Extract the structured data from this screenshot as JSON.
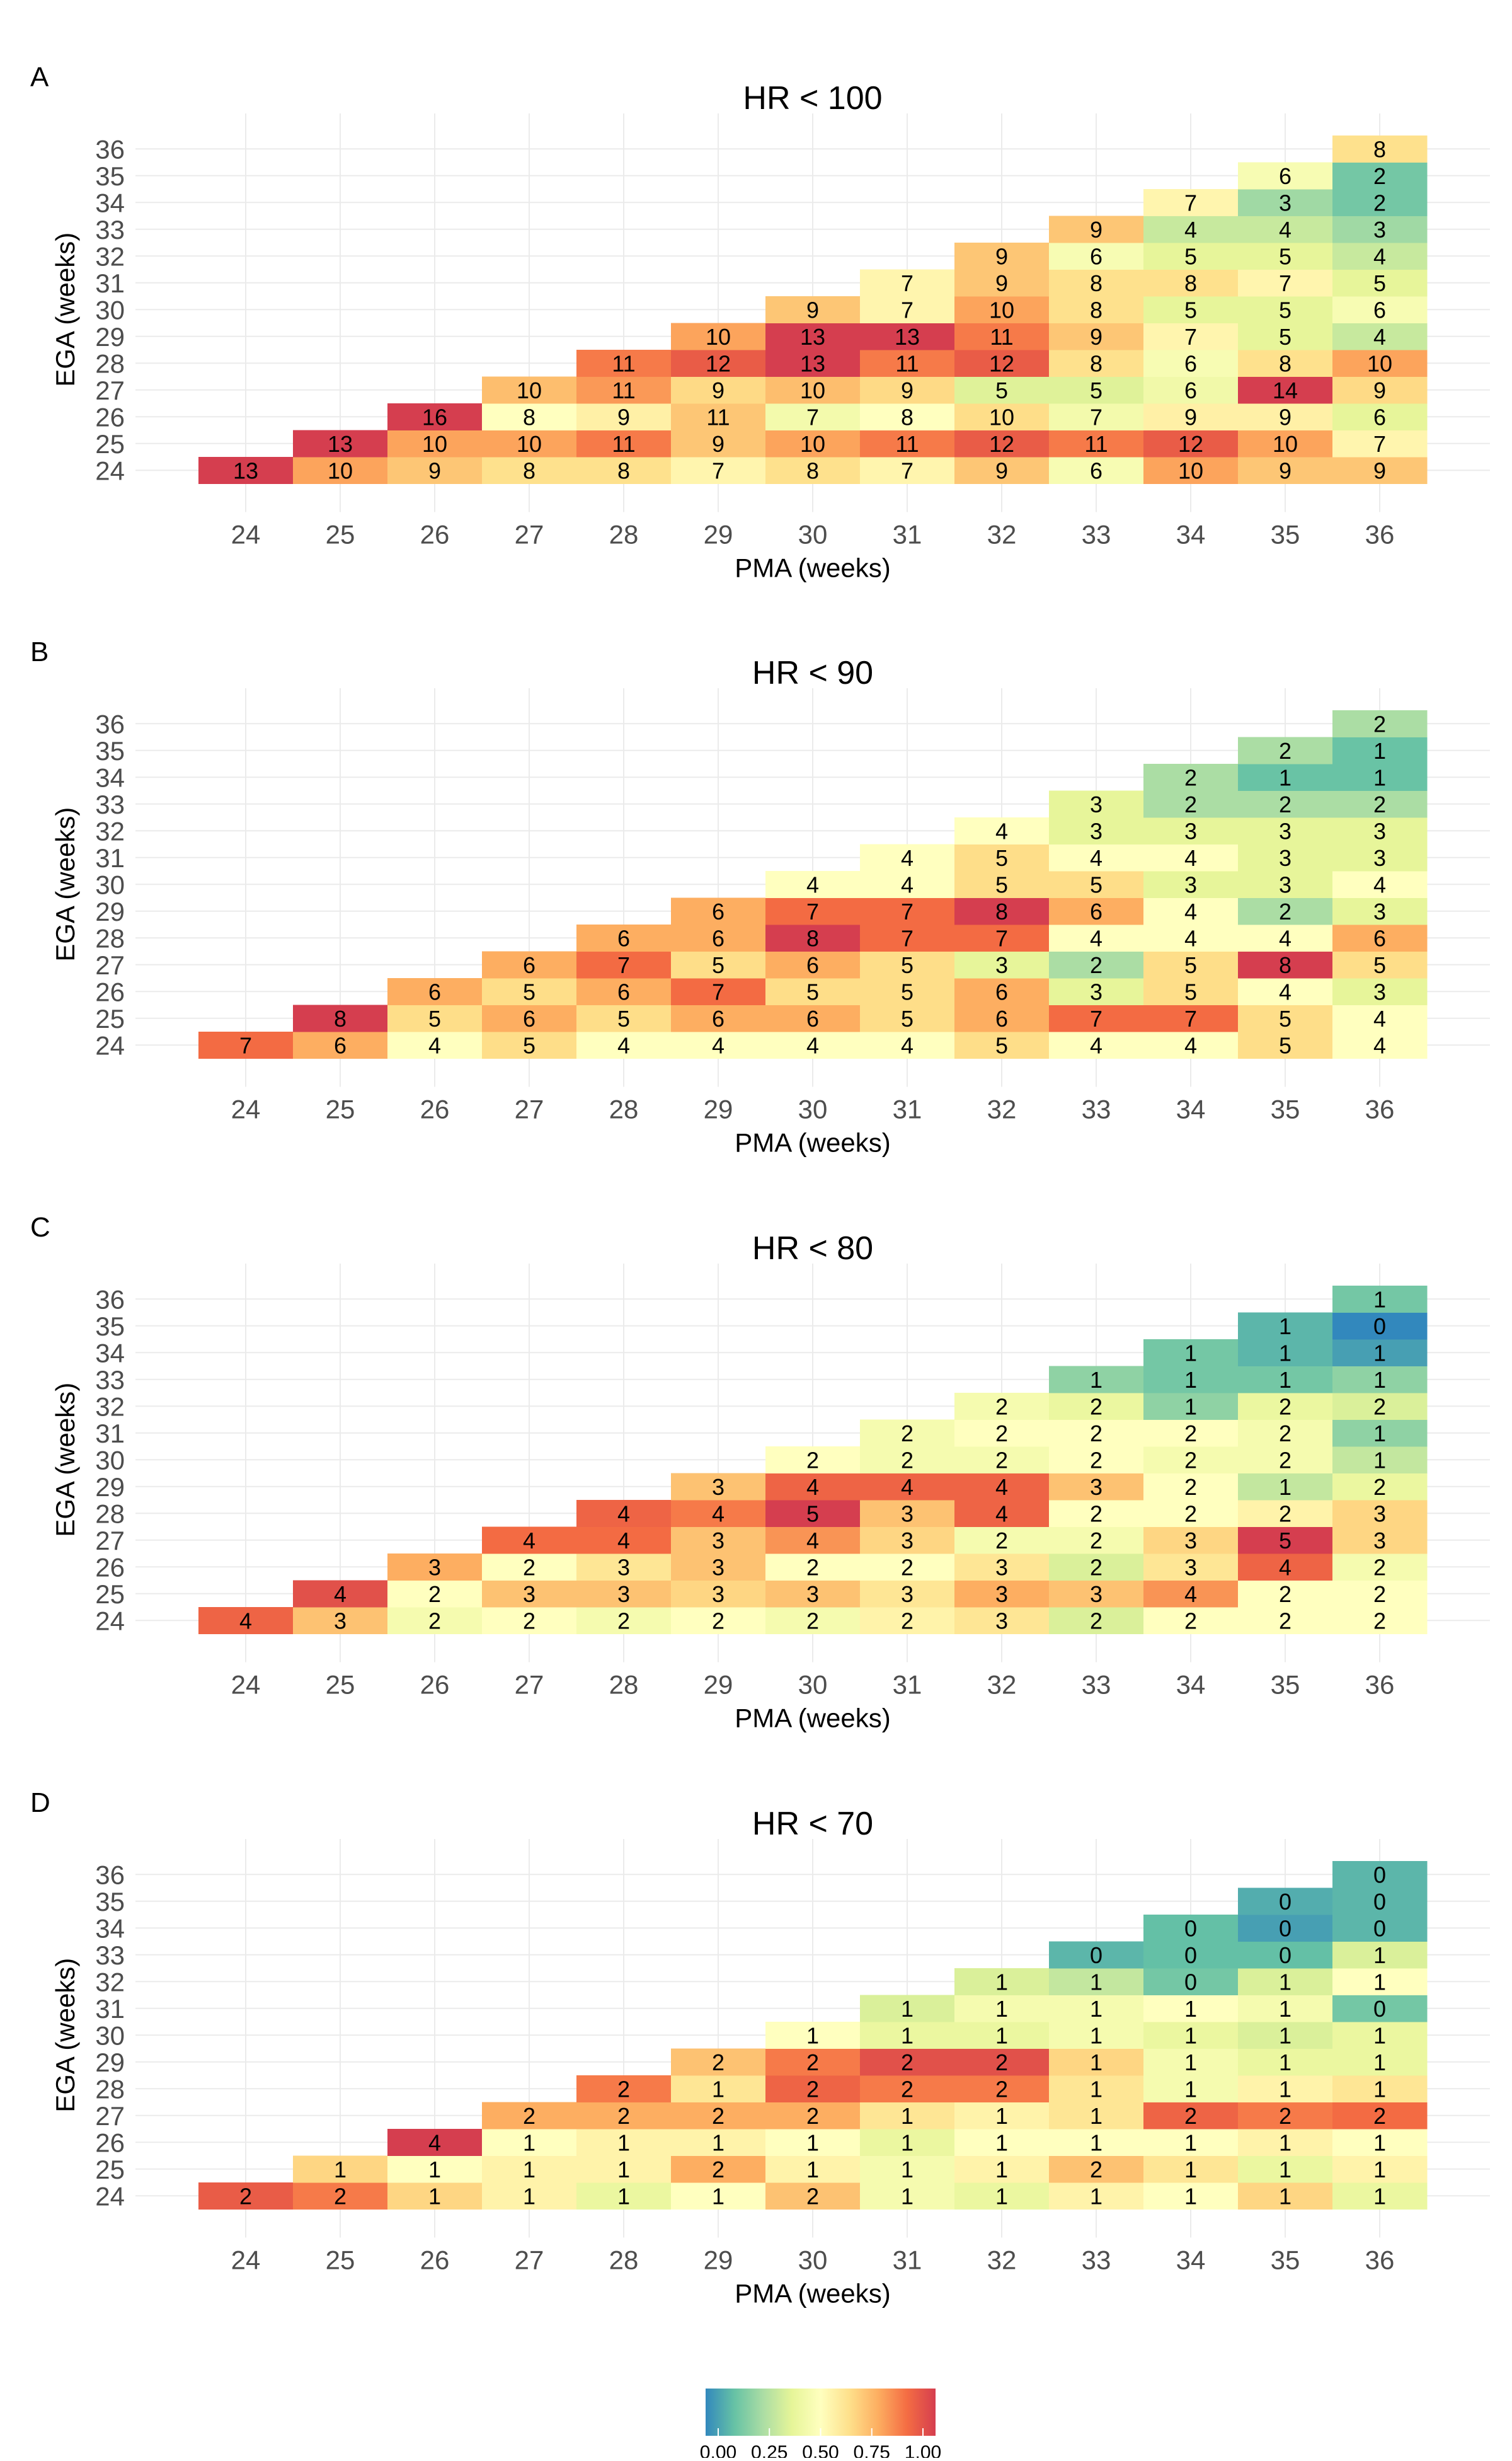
{
  "chart_data": {
    "type": "heatmap",
    "x_axis_label": "PMA (weeks)",
    "y_axis_label": "EGA (weeks)",
    "x_ticks": [
      "24",
      "25",
      "26",
      "27",
      "28",
      "29",
      "30",
      "31",
      "32",
      "33",
      "34",
      "35",
      "36"
    ],
    "y_ticks": [
      "24",
      "25",
      "26",
      "27",
      "28",
      "29",
      "30",
      "31",
      "32",
      "33",
      "34",
      "35",
      "36"
    ],
    "color_scale": {
      "name": "Spectral (reversed)",
      "min": 0,
      "max": 1,
      "stops": [
        "#3288bd",
        "#66c2a5",
        "#abdda4",
        "#e6f598",
        "#ffffbf",
        "#fee08b",
        "#fdae61",
        "#f46d43",
        "#d53e4f"
      ],
      "tick_labels": [
        "0.00",
        "0.25",
        "0.50",
        "0.75",
        "1.00"
      ]
    },
    "panels": [
      {
        "letter": "A",
        "title": "HR < 100",
        "rows": {
          "24": [
            13,
            10,
            9,
            8,
            8,
            7,
            8,
            7,
            9,
            6,
            10,
            9,
            9
          ],
          "25": [
            13,
            10,
            10,
            11,
            9,
            10,
            11,
            12,
            11,
            12,
            10,
            7
          ],
          "26": [
            16,
            8,
            9,
            11,
            7,
            8,
            10,
            7,
            9,
            9,
            6
          ],
          "27": [
            10,
            11,
            9,
            10,
            9,
            5,
            5,
            6,
            14,
            9
          ],
          "28": [
            11,
            12,
            13,
            11,
            12,
            8,
            6,
            8,
            10
          ],
          "29": [
            10,
            13,
            13,
            11,
            9,
            7,
            5,
            4
          ],
          "30": [
            9,
            7,
            10,
            8,
            5,
            5,
            6
          ],
          "31": [
            7,
            9,
            8,
            8,
            7,
            5
          ],
          "32": [
            9,
            6,
            5,
            5,
            4
          ],
          "33": [
            9,
            4,
            4,
            3
          ],
          "34": [
            7,
            3,
            2
          ],
          "35": [
            6,
            2
          ],
          "36": [
            8
          ]
        },
        "fractions": {
          "24": [
            1.0,
            0.77,
            0.69,
            0.62,
            0.62,
            0.54,
            0.62,
            0.54,
            0.69,
            0.46,
            0.77,
            0.69,
            0.69
          ],
          "25": [
            1.0,
            0.77,
            0.77,
            0.85,
            0.69,
            0.77,
            0.85,
            0.92,
            0.85,
            0.92,
            0.77,
            0.54
          ],
          "26": [
            1.0,
            0.5,
            0.56,
            0.69,
            0.44,
            0.5,
            0.63,
            0.44,
            0.56,
            0.56,
            0.38
          ],
          "27": [
            0.71,
            0.79,
            0.64,
            0.71,
            0.64,
            0.36,
            0.36,
            0.43,
            1.0,
            0.64
          ],
          "28": [
            0.85,
            0.92,
            1.0,
            0.85,
            0.92,
            0.62,
            0.46,
            0.62,
            0.77
          ],
          "29": [
            0.77,
            1.0,
            1.0,
            0.85,
            0.69,
            0.54,
            0.38,
            0.31
          ],
          "30": [
            0.69,
            0.54,
            0.77,
            0.62,
            0.38,
            0.38,
            0.46
          ],
          "31": [
            0.54,
            0.69,
            0.62,
            0.62,
            0.54,
            0.38
          ],
          "32": [
            0.69,
            0.46,
            0.38,
            0.38,
            0.31
          ],
          "33": [
            0.69,
            0.31,
            0.31,
            0.23
          ],
          "34": [
            0.54,
            0.23,
            0.15
          ],
          "35": [
            0.46,
            0.15
          ],
          "36": [
            0.62
          ]
        }
      },
      {
        "letter": "B",
        "title": "HR < 90",
        "rows": {
          "24": [
            7,
            6,
            4,
            5,
            4,
            4,
            4,
            4,
            5,
            4,
            4,
            5,
            4
          ],
          "25": [
            8,
            5,
            6,
            5,
            6,
            6,
            5,
            6,
            7,
            7,
            5,
            4
          ],
          "26": [
            6,
            5,
            6,
            7,
            5,
            5,
            6,
            3,
            5,
            4,
            3
          ],
          "27": [
            6,
            7,
            5,
            6,
            5,
            3,
            2,
            5,
            8,
            5
          ],
          "28": [
            6,
            6,
            8,
            7,
            7,
            4,
            4,
            4,
            6
          ],
          "29": [
            6,
            7,
            7,
            8,
            6,
            4,
            2,
            3
          ],
          "30": [
            4,
            4,
            5,
            5,
            3,
            3,
            4
          ],
          "31": [
            4,
            5,
            4,
            4,
            3,
            3
          ],
          "32": [
            4,
            3,
            3,
            3,
            3
          ],
          "33": [
            3,
            2,
            2,
            2
          ],
          "34": [
            2,
            1,
            1
          ],
          "35": [
            2,
            1
          ],
          "36": [
            2
          ]
        },
        "fractions": {
          "24": [
            0.88,
            0.75,
            0.5,
            0.63,
            0.5,
            0.5,
            0.5,
            0.5,
            0.63,
            0.5,
            0.5,
            0.63,
            0.5
          ],
          "25": [
            1.0,
            0.63,
            0.75,
            0.63,
            0.75,
            0.75,
            0.63,
            0.75,
            0.88,
            0.88,
            0.63,
            0.5
          ],
          "26": [
            0.75,
            0.63,
            0.75,
            0.88,
            0.63,
            0.63,
            0.75,
            0.38,
            0.63,
            0.5,
            0.38
          ],
          "27": [
            0.75,
            0.88,
            0.63,
            0.75,
            0.63,
            0.38,
            0.25,
            0.63,
            1.0,
            0.63
          ],
          "28": [
            0.75,
            0.75,
            1.0,
            0.88,
            0.88,
            0.5,
            0.5,
            0.5,
            0.75
          ],
          "29": [
            0.75,
            0.88,
            0.88,
            1.0,
            0.75,
            0.5,
            0.25,
            0.38
          ],
          "30": [
            0.5,
            0.5,
            0.63,
            0.63,
            0.38,
            0.38,
            0.5
          ],
          "31": [
            0.5,
            0.63,
            0.5,
            0.5,
            0.38,
            0.38
          ],
          "32": [
            0.5,
            0.38,
            0.38,
            0.38,
            0.38
          ],
          "33": [
            0.38,
            0.25,
            0.25,
            0.25
          ],
          "34": [
            0.25,
            0.13,
            0.13
          ],
          "35": [
            0.25,
            0.13
          ],
          "36": [
            0.25
          ]
        }
      },
      {
        "letter": "C",
        "title": "HR < 80",
        "rows": {
          "24": [
            4,
            3,
            2,
            2,
            2,
            2,
            2,
            2,
            3,
            2,
            2,
            2,
            2
          ],
          "25": [
            4,
            2,
            3,
            3,
            3,
            3,
            3,
            3,
            3,
            4,
            2,
            2
          ],
          "26": [
            3,
            2,
            3,
            3,
            2,
            2,
            3,
            2,
            3,
            4,
            2
          ],
          "27": [
            4,
            4,
            3,
            4,
            3,
            2,
            2,
            3,
            5,
            3
          ],
          "28": [
            4,
            4,
            5,
            3,
            4,
            2,
            2,
            2,
            3
          ],
          "29": [
            3,
            4,
            4,
            4,
            3,
            2,
            1,
            2
          ],
          "30": [
            2,
            2,
            2,
            2,
            2,
            2,
            1
          ],
          "31": [
            2,
            2,
            2,
            2,
            2,
            1
          ],
          "32": [
            2,
            2,
            1,
            2,
            2
          ],
          "33": [
            1,
            1,
            1,
            1
          ],
          "34": [
            1,
            1,
            1
          ],
          "35": [
            1,
            0
          ],
          "36": [
            1
          ]
        },
        "fractions": {
          "24": [
            0.9,
            0.7,
            0.45,
            0.5,
            0.45,
            0.5,
            0.45,
            0.55,
            0.6,
            0.35,
            0.5,
            0.5,
            0.5
          ],
          "25": [
            0.95,
            0.5,
            0.7,
            0.7,
            0.65,
            0.7,
            0.6,
            0.75,
            0.7,
            0.8,
            0.5,
            0.5
          ],
          "26": [
            0.75,
            0.5,
            0.6,
            0.7,
            0.5,
            0.5,
            0.6,
            0.35,
            0.6,
            0.9,
            0.45
          ],
          "27": [
            0.88,
            0.88,
            0.7,
            0.8,
            0.65,
            0.45,
            0.45,
            0.65,
            1.0,
            0.65
          ],
          "28": [
            0.9,
            0.85,
            1.0,
            0.7,
            0.9,
            0.5,
            0.5,
            0.55,
            0.65
          ],
          "29": [
            0.7,
            0.9,
            0.9,
            0.9,
            0.7,
            0.5,
            0.3,
            0.4
          ],
          "30": [
            0.5,
            0.45,
            0.45,
            0.5,
            0.45,
            0.45,
            0.3
          ],
          "31": [
            0.45,
            0.5,
            0.5,
            0.5,
            0.45,
            0.2
          ],
          "32": [
            0.45,
            0.4,
            0.2,
            0.4,
            0.35
          ],
          "33": [
            0.2,
            0.15,
            0.15,
            0.2
          ],
          "34": [
            0.15,
            0.1,
            0.05
          ],
          "35": [
            0.1,
            0.0
          ],
          "36": [
            0.15
          ]
        }
      },
      {
        "letter": "D",
        "title": "HR < 70",
        "rows": {
          "24": [
            2,
            2,
            1,
            1,
            1,
            1,
            2,
            1,
            1,
            1,
            1,
            1,
            1
          ],
          "25": [
            1,
            1,
            1,
            1,
            2,
            1,
            1,
            1,
            2,
            1,
            1,
            1
          ],
          "26": [
            4,
            1,
            1,
            1,
            1,
            1,
            1,
            1,
            1,
            1,
            1
          ],
          "27": [
            2,
            2,
            2,
            2,
            1,
            1,
            1,
            2,
            2,
            2
          ],
          "28": [
            2,
            1,
            2,
            2,
            2,
            1,
            1,
            1,
            1
          ],
          "29": [
            2,
            2,
            2,
            2,
            1,
            1,
            1,
            1
          ],
          "30": [
            1,
            1,
            1,
            1,
            1,
            1,
            1
          ],
          "31": [
            1,
            1,
            1,
            1,
            1,
            0
          ],
          "32": [
            1,
            1,
            0,
            1,
            1
          ],
          "33": [
            0,
            0,
            0,
            1
          ],
          "34": [
            0,
            0,
            0
          ],
          "35": [
            0,
            0
          ],
          "36": [
            0
          ]
        },
        "fractions": {
          "24": [
            0.92,
            0.85,
            0.65,
            0.55,
            0.4,
            0.5,
            0.7,
            0.45,
            0.4,
            0.55,
            0.5,
            0.65,
            0.4
          ],
          "25": [
            0.65,
            0.5,
            0.55,
            0.55,
            0.75,
            0.55,
            0.45,
            0.55,
            0.7,
            0.6,
            0.4,
            0.55
          ],
          "26": [
            1.0,
            0.5,
            0.55,
            0.55,
            0.5,
            0.4,
            0.5,
            0.5,
            0.5,
            0.55,
            0.5
          ],
          "27": [
            0.75,
            0.75,
            0.75,
            0.75,
            0.6,
            0.55,
            0.6,
            0.9,
            0.85,
            0.88
          ],
          "28": [
            0.85,
            0.6,
            0.9,
            0.85,
            0.85,
            0.6,
            0.45,
            0.55,
            0.6
          ],
          "29": [
            0.7,
            0.85,
            0.95,
            0.95,
            0.65,
            0.45,
            0.4,
            0.4
          ],
          "30": [
            0.5,
            0.4,
            0.4,
            0.45,
            0.4,
            0.35,
            0.4
          ],
          "31": [
            0.35,
            0.45,
            0.45,
            0.5,
            0.45,
            0.15
          ],
          "32": [
            0.35,
            0.3,
            0.15,
            0.35,
            0.5
          ],
          "33": [
            0.1,
            0.12,
            0.12,
            0.35
          ],
          "34": [
            0.12,
            0.05,
            0.1
          ],
          "35": [
            0.08,
            0.1
          ],
          "36": [
            0.1
          ]
        }
      }
    ]
  }
}
